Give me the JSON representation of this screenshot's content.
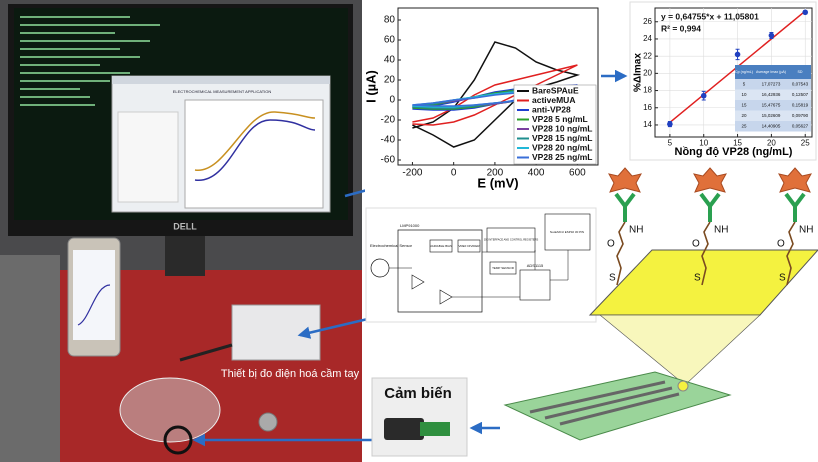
{
  "chart_data": [
    {
      "type": "line",
      "xlabel": "E (mV)",
      "ylabel": "I (µA)",
      "xlim": [
        -270,
        700
      ],
      "xticks": [
        -200,
        0,
        200,
        400,
        600
      ],
      "ylim": [
        -65,
        92
      ],
      "yticks": [
        -60,
        -40,
        -20,
        0,
        20,
        40,
        60,
        80
      ],
      "legend": "lower right",
      "series": [
        {
          "name": "BareSPAuE",
          "color": "#111111",
          "x": [
            -200,
            -100,
            0,
            100,
            200,
            300,
            400,
            500,
            600,
            500,
            400,
            300,
            200,
            100,
            0,
            -100,
            -200
          ],
          "values": [
            -28,
            -22,
            -8,
            20,
            58,
            52,
            38,
            30,
            25,
            18,
            12,
            0,
            -20,
            -40,
            -47,
            -35,
            -25
          ]
        },
        {
          "name": "activeMUA",
          "color": "#e02020",
          "x": [
            -200,
            -100,
            0,
            100,
            200,
            300,
            400,
            500,
            600,
            500,
            400,
            300,
            200,
            100,
            0,
            -100,
            -200
          ],
          "values": [
            -22,
            -18,
            -8,
            5,
            15,
            20,
            25,
            30,
            35,
            25,
            15,
            5,
            -5,
            -15,
            -22,
            -25,
            -24
          ]
        },
        {
          "name": "anti-VP28",
          "color": "#1f3fd0",
          "x": [
            -200,
            -100,
            0,
            100,
            200,
            300,
            400,
            500,
            600,
            500,
            400,
            300,
            200,
            100,
            0,
            -100,
            -200
          ],
          "values": [
            -8,
            -6,
            -2,
            3,
            8,
            11,
            13,
            14,
            15,
            10,
            5,
            0,
            -4,
            -8,
            -10,
            -10,
            -9
          ]
        },
        {
          "name": "VP28 5 ng/mL",
          "color": "#2ca02c",
          "x": [
            -200,
            -100,
            0,
            100,
            200,
            300,
            400,
            500,
            600,
            500,
            400,
            300,
            200,
            100,
            0,
            -100,
            -200
          ],
          "values": [
            -7,
            -5,
            -1,
            3,
            7,
            10,
            12,
            13,
            14,
            9,
            4,
            -1,
            -4,
            -7,
            -9,
            -9,
            -8
          ]
        },
        {
          "name": "VP28 10 ng/mL",
          "color": "#7b3fa0",
          "x": [
            -200,
            -100,
            0,
            100,
            200,
            300,
            400,
            500,
            600,
            500,
            400,
            300,
            200,
            100,
            0,
            -100,
            -200
          ],
          "values": [
            -6,
            -4,
            -1,
            2,
            6,
            9,
            11,
            12,
            13,
            8,
            4,
            -1,
            -4,
            -6,
            -8,
            -8,
            -7
          ]
        },
        {
          "name": "VP28 15 ng/mL",
          "color": "#1f8f8f",
          "x": [
            -200,
            -100,
            0,
            100,
            200,
            300,
            400,
            500,
            600,
            500,
            400,
            300,
            200,
            100,
            0,
            -100,
            -200
          ],
          "values": [
            -6,
            -4,
            0,
            3,
            6,
            9,
            10,
            11,
            12,
            8,
            3,
            -1,
            -3,
            -6,
            -8,
            -8,
            -7
          ]
        },
        {
          "name": "VP28 20 ng/mL",
          "color": "#22b8d8",
          "x": [
            -200,
            -100,
            0,
            100,
            200,
            300,
            400,
            500,
            600,
            500,
            400,
            300,
            200,
            100,
            0,
            -100,
            -200
          ],
          "values": [
            -5,
            -3,
            0,
            3,
            6,
            8,
            10,
            11,
            11,
            7,
            3,
            -1,
            -3,
            -5,
            -7,
            -7,
            -6
          ]
        },
        {
          "name": "VP28 25 ng/mL",
          "color": "#3a6fd8",
          "x": [
            -200,
            -100,
            0,
            100,
            200,
            300,
            400,
            500,
            600,
            500,
            400,
            300,
            200,
            100,
            0,
            -100,
            -200
          ],
          "values": [
            -5,
            -3,
            0,
            2,
            5,
            7,
            9,
            10,
            10,
            7,
            3,
            -1,
            -3,
            -5,
            -6,
            -6,
            -5
          ]
        }
      ]
    },
    {
      "type": "scatter",
      "xlabel": "Nồng độ VP28 (ng/mL)",
      "ylabel": "%ΔImax",
      "x": [
        5,
        10,
        15,
        20,
        25
      ],
      "values": [
        14.1,
        17.4,
        22.2,
        24.4,
        27.1
      ],
      "errors": [
        0.3,
        0.5,
        0.6,
        0.35,
        0.2
      ],
      "color": "#2040c0",
      "fit_color": "#e02020",
      "fit": {
        "slope": 0.64755,
        "intercept": 11.05801
      },
      "annotations": [
        "y = 0,64755*x + 11,05801",
        "R² = 0,994"
      ],
      "xlim": [
        2.8,
        26
      ],
      "xticks": [
        5,
        10,
        15,
        20,
        25
      ],
      "ylim": [
        12.6,
        27.6
      ],
      "yticks": [
        14,
        16,
        18,
        20,
        22,
        24,
        26
      ],
      "grid": true,
      "table": {
        "header": [
          "Cp (ng/mL)",
          "Average Imax (µA)",
          "SD"
        ],
        "rows": [
          [
            "5",
            "17,07273",
            "0,07543"
          ],
          [
            "10",
            "16,42936",
            "0,12507"
          ],
          [
            "15",
            "15,47675",
            "0,15819"
          ],
          [
            "20",
            "15,02609",
            "0,09790"
          ],
          [
            "25",
            "14,40905",
            "0,05627"
          ]
        ]
      }
    }
  ],
  "photo": {
    "device_label": "Thiết bị đo điện hoá cầm tay",
    "monitor_brand": "DELL",
    "window_title": "ELECTROCHEMICAL MEASUREMENT APPLICATION"
  },
  "circuit": {
    "labels": [
      "LMP91000",
      "Electrochemical Sensor",
      "VARIABLE BIAS",
      "VREF DIVIDER",
      "I2C INTERFACE AND CONTROL REGISTERS",
      "TEMP SENSOR",
      "NodeMCU ESP32 30 PIN",
      "ADS1115"
    ]
  },
  "sensor": {
    "label": "Cảm biến",
    "molecules": [
      {
        "o": "O",
        "nh": "NH",
        "s": "S"
      },
      {
        "o": "O",
        "nh": "NH",
        "s": "S"
      },
      {
        "o": "O",
        "nh": "NH",
        "s": "S"
      }
    ]
  }
}
